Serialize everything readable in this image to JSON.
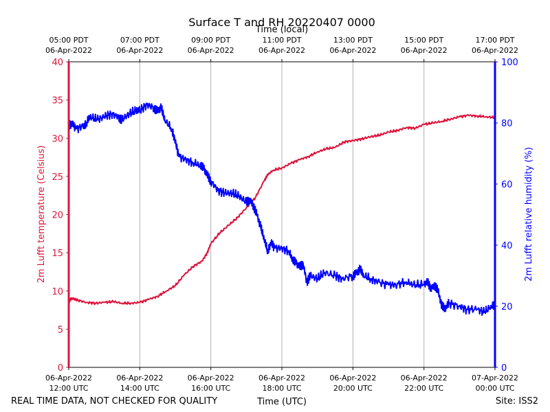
{
  "chart_data": {
    "type": "line",
    "title": "Surface T and RH 20220407 0000",
    "top_axis_label": "Time (local)",
    "xlabel": "Time (UTC)",
    "ylabel_left": "2m Lufft temperature (Celsius)",
    "ylabel_right": "2m Lufft relative humidity (%)",
    "footer_left": "REAL TIME DATA, NOT CHECKED FOR QUALITY",
    "footer_right": "Site: ISS2",
    "colors": {
      "temperature": "#dc143c",
      "humidity": "#0000ff",
      "grid": "#b0b0b0"
    },
    "x_range_hours_utc": [
      12,
      24
    ],
    "ylim_left": [
      0,
      40
    ],
    "ylim_right": [
      0,
      100
    ],
    "left_ticks": [
      0,
      5,
      10,
      15,
      20,
      25,
      30,
      35,
      40
    ],
    "right_ticks": [
      0,
      20,
      40,
      60,
      80,
      100
    ],
    "bottom_ticks": [
      {
        "hour": 12,
        "line1": "06-Apr-2022",
        "line2": "12:00 UTC"
      },
      {
        "hour": 14,
        "line1": "06-Apr-2022",
        "line2": "14:00 UTC"
      },
      {
        "hour": 16,
        "line1": "06-Apr-2022",
        "line2": "16:00 UTC"
      },
      {
        "hour": 18,
        "line1": "06-Apr-2022",
        "line2": "18:00 UTC"
      },
      {
        "hour": 20,
        "line1": "06-Apr-2022",
        "line2": "20:00 UTC"
      },
      {
        "hour": 22,
        "line1": "06-Apr-2022",
        "line2": "22:00 UTC"
      },
      {
        "hour": 24,
        "line1": "07-Apr-2022",
        "line2": "00:00 UTC"
      }
    ],
    "top_ticks": [
      {
        "hour": 12,
        "line1": "05:00 PDT",
        "line2": "06-Apr-2022"
      },
      {
        "hour": 14,
        "line1": "07:00 PDT",
        "line2": "06-Apr-2022"
      },
      {
        "hour": 16,
        "line1": "09:00 PDT",
        "line2": "06-Apr-2022"
      },
      {
        "hour": 18,
        "line1": "11:00 PDT",
        "line2": "06-Apr-2022"
      },
      {
        "hour": 20,
        "line1": "13:00 PDT",
        "line2": "06-Apr-2022"
      },
      {
        "hour": 22,
        "line1": "15:00 PDT",
        "line2": "06-Apr-2022"
      },
      {
        "hour": 24,
        "line1": "17:00 PDT",
        "line2": "06-Apr-2022"
      }
    ],
    "series": [
      {
        "name": "2m Lufft temperature",
        "axis": "left",
        "unit": "Celsius",
        "x": [
          12.0,
          12.05,
          12.1,
          12.25,
          12.5,
          12.75,
          13.0,
          13.25,
          13.5,
          13.75,
          14.0,
          14.25,
          14.5,
          14.75,
          15.0,
          15.25,
          15.5,
          15.75,
          15.9,
          16.0,
          16.25,
          16.5,
          16.75,
          17.0,
          17.25,
          17.5,
          17.6,
          17.75,
          18.0,
          18.25,
          18.5,
          18.75,
          19.0,
          19.25,
          19.5,
          19.75,
          20.0,
          20.25,
          20.5,
          20.75,
          21.0,
          21.25,
          21.5,
          21.75,
          22.0,
          22.25,
          22.5,
          22.75,
          23.0,
          23.25,
          23.5,
          23.75,
          24.0
        ],
        "values": [
          8.5,
          8.9,
          9.0,
          8.8,
          8.5,
          8.4,
          8.5,
          8.6,
          8.4,
          8.4,
          8.5,
          8.9,
          9.3,
          10.0,
          10.7,
          12.1,
          13.2,
          13.9,
          15.0,
          16.2,
          17.6,
          18.6,
          19.6,
          20.9,
          22.2,
          24.4,
          25.2,
          25.8,
          26.1,
          26.7,
          27.2,
          27.6,
          28.2,
          28.6,
          28.8,
          29.5,
          29.7,
          29.9,
          30.2,
          30.4,
          30.8,
          31.0,
          31.4,
          31.3,
          31.8,
          32.0,
          32.2,
          32.5,
          32.8,
          33.0,
          32.9,
          32.8,
          32.7
        ]
      },
      {
        "name": "2m Lufft relative humidity",
        "axis": "right",
        "unit": "%",
        "x": [
          12.0,
          12.1,
          12.2,
          12.4,
          12.5,
          12.6,
          12.8,
          13.0,
          13.2,
          13.4,
          13.5,
          13.7,
          13.9,
          14.0,
          14.2,
          14.4,
          14.5,
          14.6,
          14.7,
          14.9,
          15.0,
          15.1,
          15.3,
          15.5,
          15.7,
          15.8,
          15.9,
          16.0,
          16.2,
          16.4,
          16.6,
          16.8,
          17.0,
          17.1,
          17.2,
          17.3,
          17.4,
          17.5,
          17.6,
          17.7,
          17.8,
          18.0,
          18.2,
          18.3,
          18.4,
          18.5,
          18.6,
          18.7,
          18.8,
          19.0,
          19.2,
          19.5,
          19.7,
          20.0,
          20.1,
          20.2,
          20.3,
          20.5,
          20.7,
          21.0,
          21.2,
          21.5,
          21.7,
          22.0,
          22.1,
          22.2,
          22.3,
          22.4,
          22.5,
          22.6,
          22.7,
          23.0,
          23.2,
          23.5,
          23.7,
          23.9,
          24.0
        ],
        "values": [
          79,
          80,
          78,
          79,
          80,
          82,
          81,
          82,
          83,
          82,
          81,
          83,
          84,
          84,
          86,
          85,
          84,
          85,
          81,
          78,
          74,
          69,
          68,
          67,
          66,
          65,
          63,
          61,
          58,
          57,
          57,
          56,
          54,
          55,
          53,
          50,
          46,
          42,
          38,
          41,
          39,
          39,
          38,
          35,
          34,
          33,
          34,
          28,
          30,
          29,
          31,
          30,
          29,
          30,
          31,
          32,
          30,
          29,
          28,
          27,
          27,
          28,
          27,
          27,
          28,
          26,
          27,
          25,
          20,
          19,
          21,
          20,
          19,
          19,
          18,
          20,
          20
        ]
      }
    ]
  }
}
